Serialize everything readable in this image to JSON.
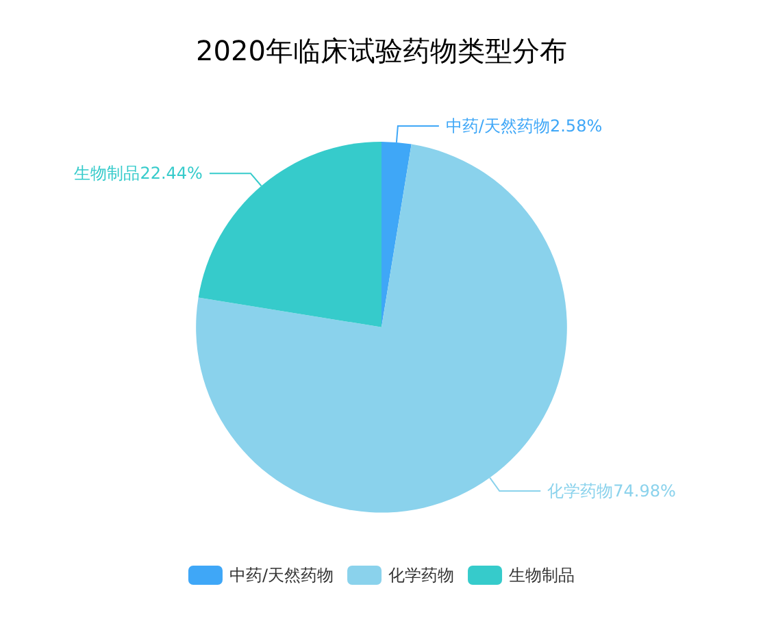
{
  "chart_data": {
    "type": "pie",
    "title": "2020年临床试验药物类型分布",
    "categories": [
      "中药/天然药物",
      "化学药物",
      "生物制品"
    ],
    "values": [
      2.58,
      74.98,
      22.44
    ],
    "value_labels": [
      "2.58%",
      "74.98%",
      "22.44%"
    ],
    "colors": [
      "#3fa7f7",
      "#8ad2ec",
      "#36cbcb"
    ],
    "legend": "bottom"
  }
}
